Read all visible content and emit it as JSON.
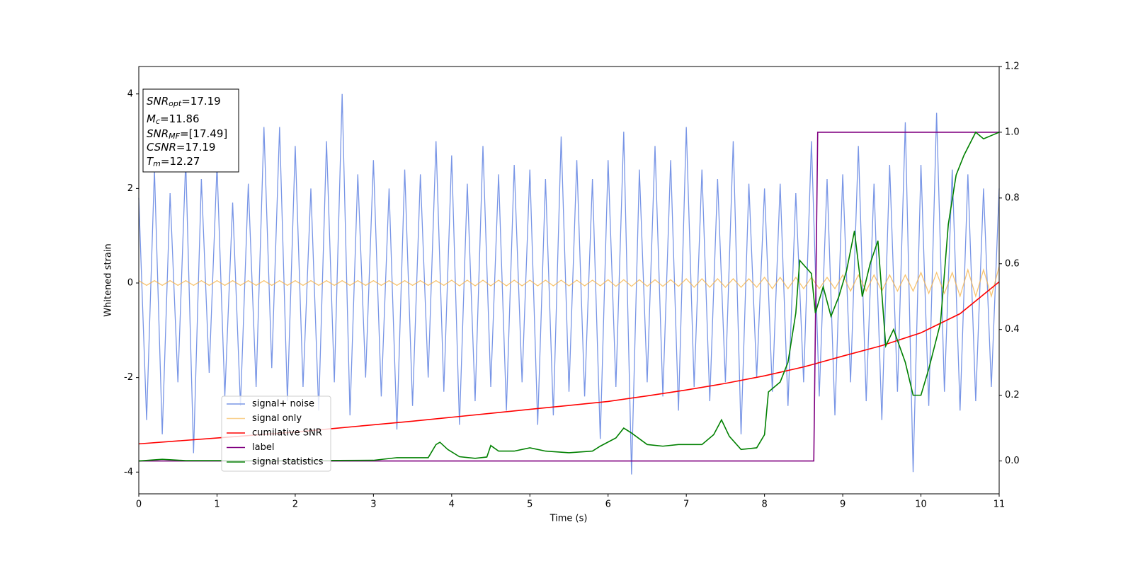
{
  "chart_data": {
    "type": "line",
    "xlabel": "Time (s)",
    "ylabel": "Whitened strain",
    "xlim": [
      0,
      11
    ],
    "xticks": [
      0,
      1,
      2,
      3,
      4,
      5,
      6,
      7,
      8,
      9,
      10,
      11
    ],
    "ylim": [
      -4.46,
      4.58
    ],
    "yticks": [
      -4,
      -2,
      0,
      2,
      4
    ],
    "y2lim": [
      -0.1,
      1.2
    ],
    "y2ticks": [
      {
        "value": 0,
        "label": "0.0"
      },
      0.2,
      0.4,
      0.6,
      0.8,
      {
        "value": 1,
        "label": "1.0"
      },
      1.2
    ],
    "x": [
      0,
      0.1,
      0.2,
      0.3,
      0.4,
      0.5,
      0.6,
      0.7,
      0.8,
      0.9,
      1,
      1.1,
      1.2,
      1.3,
      1.4,
      1.5,
      1.6,
      1.7,
      1.8,
      1.9,
      2,
      2.1,
      2.2,
      2.3,
      2.4,
      2.5,
      2.6,
      2.7,
      2.8,
      2.9,
      3,
      3.1,
      3.2,
      3.3,
      3.4,
      3.5,
      3.6,
      3.7,
      3.8,
      3.9,
      4,
      4.1,
      4.2,
      4.3,
      4.4,
      4.5,
      4.6,
      4.7,
      4.8,
      4.9,
      5,
      5.1,
      5.2,
      5.3,
      5.4,
      5.5,
      5.6,
      5.7,
      5.8,
      5.9,
      6,
      6.1,
      6.2,
      6.3,
      6.4,
      6.5,
      6.6,
      6.7,
      6.8,
      6.9,
      7,
      7.1,
      7.2,
      7.3,
      7.4,
      7.5,
      7.6,
      7.7,
      7.8,
      7.9,
      8,
      8.1,
      8.2,
      8.3,
      8.4,
      8.5,
      8.6,
      8.7,
      8.8,
      8.9,
      9,
      9.1,
      9.2,
      9.3,
      9.4,
      9.5,
      9.6,
      9.7,
      9.8,
      9.9,
      10,
      10.1,
      10.2,
      10.3,
      10.4,
      10.5,
      10.6,
      10.7,
      10.8,
      10.9,
      11
    ],
    "series": [
      {
        "name": "signal+ noise",
        "color": "#7895e6",
        "values": [
          1.8,
          -2.9,
          2.4,
          -3.2,
          1.9,
          -2.1,
          2.6,
          -3.6,
          2.2,
          -1.9,
          2.5,
          -2.4,
          1.7,
          -2.6,
          2.1,
          -2.2,
          3.3,
          -1.8,
          3.3,
          -2.5,
          2.9,
          -2.2,
          2.0,
          -2.7,
          3.0,
          -2.1,
          4.0,
          -2.8,
          2.3,
          -2.0,
          2.6,
          -2.4,
          2.0,
          -3.1,
          2.4,
          -2.6,
          2.3,
          -2.0,
          3.0,
          -2.3,
          2.7,
          -3.0,
          2.1,
          -2.5,
          2.9,
          -2.2,
          2.3,
          -2.7,
          2.5,
          -2.1,
          2.4,
          -3.0,
          2.2,
          -2.8,
          3.1,
          -2.3,
          2.6,
          -2.4,
          2.2,
          -3.3,
          2.6,
          -2.2,
          3.2,
          -4.05,
          2.4,
          -2.1,
          2.9,
          -2.4,
          2.6,
          -2.7,
          3.3,
          -2.2,
          2.4,
          -2.5,
          2.2,
          -2.1,
          3.0,
          -3.2,
          2.1,
          -2.0,
          2.0,
          -2.3,
          2.1,
          -2.6,
          1.9,
          -2.1,
          3.0,
          -2.4,
          2.2,
          -2.8,
          2.3,
          -2.1,
          2.9,
          -2.5,
          2.1,
          -2.9,
          2.5,
          -2.3,
          3.4,
          -4.0,
          2.5,
          -2.6,
          3.6,
          -2.3,
          2.4,
          -2.7,
          2.3,
          -2.5,
          2.0,
          -2.2,
          2.0
        ]
      },
      {
        "name": "signal only",
        "color": "#f5b041",
        "values": [
          0.05,
          -0.05,
          0.05,
          -0.05,
          0.05,
          -0.05,
          0.05,
          -0.05,
          0.05,
          -0.05,
          0.05,
          -0.05,
          0.05,
          -0.05,
          0.05,
          -0.05,
          0.05,
          -0.05,
          0.05,
          -0.05,
          0.05,
          -0.05,
          0.05,
          -0.05,
          0.05,
          -0.05,
          0.05,
          -0.05,
          0.05,
          -0.05,
          0.05,
          -0.05,
          0.05,
          -0.05,
          0.05,
          -0.05,
          0.05,
          -0.05,
          0.05,
          -0.05,
          0.06,
          -0.06,
          0.06,
          -0.06,
          0.06,
          -0.06,
          0.06,
          -0.06,
          0.06,
          -0.06,
          0.06,
          -0.06,
          0.06,
          -0.06,
          0.06,
          -0.06,
          0.06,
          -0.06,
          0.06,
          -0.06,
          0.07,
          -0.07,
          0.07,
          -0.07,
          0.07,
          -0.07,
          0.07,
          -0.07,
          0.07,
          -0.07,
          0.09,
          -0.09,
          0.09,
          -0.09,
          0.09,
          -0.09,
          0.09,
          -0.09,
          0.09,
          -0.09,
          0.12,
          -0.12,
          0.12,
          -0.12,
          0.12,
          -0.12,
          0.12,
          -0.12,
          0.12,
          -0.12,
          0.17,
          -0.17,
          0.17,
          -0.17,
          0.17,
          -0.17,
          0.17,
          -0.17,
          0.17,
          -0.17,
          0.22,
          -0.22,
          0.22,
          -0.22,
          0.22,
          -0.28,
          0.28,
          -0.28,
          0.28,
          -0.28,
          0.35
        ]
      },
      {
        "name": "cumilative SNR",
        "color": "#ff0000",
        "axis": "y2",
        "x": [
          0,
          0.5,
          1,
          1.5,
          2,
          2.5,
          3,
          3.5,
          4,
          4.5,
          5,
          5.5,
          6,
          6.5,
          7,
          7.5,
          8,
          8.5,
          9,
          9.5,
          10,
          10.5,
          11
        ],
        "values": [
          0.052,
          0.061,
          0.07,
          0.079,
          0.088,
          0.099,
          0.11,
          0.121,
          0.133,
          0.145,
          0.157,
          0.169,
          0.181,
          0.198,
          0.216,
          0.236,
          0.259,
          0.286,
          0.319,
          0.351,
          0.39,
          0.448,
          0.545
        ]
      },
      {
        "name": "label",
        "color": "#800080",
        "axis": "y2",
        "x": [
          0,
          8.63,
          8.68,
          11
        ],
        "values": [
          0,
          0,
          1,
          1
        ]
      },
      {
        "name": "signal statistics",
        "color": "#008000",
        "axis": "y2",
        "x": [
          0,
          0.3,
          0.6,
          1,
          2,
          3,
          3.3,
          3.7,
          3.8,
          3.85,
          3.95,
          4.1,
          4.3,
          4.45,
          4.5,
          4.6,
          4.8,
          5,
          5.2,
          5.5,
          5.8,
          5.9,
          6.1,
          6.2,
          6.3,
          6.5,
          6.7,
          6.9,
          7.2,
          7.35,
          7.45,
          7.55,
          7.7,
          7.9,
          8,
          8.05,
          8.2,
          8.3,
          8.4,
          8.45,
          8.6,
          8.65,
          8.75,
          8.85,
          8.95,
          9.05,
          9.15,
          9.25,
          9.35,
          9.45,
          9.55,
          9.65,
          9.8,
          9.9,
          10,
          10.1,
          10.25,
          10.35,
          10.45,
          10.55,
          10.7,
          10.8,
          10.9,
          11
        ],
        "values": [
          0,
          0.005,
          0.001,
          0.001,
          0.001,
          0.002,
          0.01,
          0.01,
          0.05,
          0.057,
          0.035,
          0.013,
          0.008,
          0.012,
          0.047,
          0.03,
          0.03,
          0.04,
          0.03,
          0.025,
          0.03,
          0.045,
          0.07,
          0.1,
          0.085,
          0.05,
          0.045,
          0.05,
          0.05,
          0.08,
          0.125,
          0.075,
          0.035,
          0.04,
          0.08,
          0.21,
          0.24,
          0.3,
          0.45,
          0.61,
          0.57,
          0.45,
          0.53,
          0.44,
          0.5,
          0.58,
          0.7,
          0.5,
          0.6,
          0.67,
          0.35,
          0.4,
          0.3,
          0.2,
          0.2,
          0.28,
          0.42,
          0.72,
          0.87,
          0.93,
          1,
          0.98,
          0.99,
          1
        ]
      }
    ],
    "annotation": [
      {
        "symbol": "SNR",
        "sub": "opt",
        "text": "=17.19"
      },
      {
        "symbol": "M",
        "sub": "c",
        "text": "=11.86"
      },
      {
        "symbol": "SNR",
        "sub": "MF",
        "text": "=[17.49]"
      },
      {
        "symbol": "CSNR",
        "text": "=17.19"
      },
      {
        "symbol": "T",
        "sub": "m",
        "text": "=12.27"
      }
    ]
  }
}
